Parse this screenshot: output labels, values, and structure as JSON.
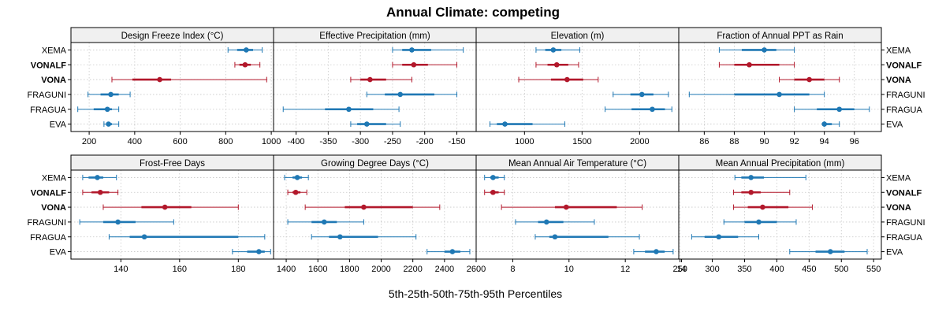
{
  "title": "Annual Climate: competing",
  "xlabel": "5th-25th-50th-75th-95th Percentiles",
  "colors": {
    "highlight": "#b2182b",
    "normal": "#1f78b4",
    "strip_bg": "#f0f0f0",
    "grid": "#c8c8c8"
  },
  "categories": [
    "XEMA",
    "VONALF",
    "VONA",
    "FRAGUNI",
    "FRAGUA",
    "EVA"
  ],
  "highlighted": [
    "VONALF",
    "VONA"
  ],
  "chart_data": [
    {
      "type": "interval",
      "title": "Design Freeze Index (°C)",
      "xlim": [
        120,
        1010
      ],
      "ticks": [
        200,
        400,
        600,
        800,
        1000
      ],
      "data": {
        "XEMA": [
          810,
          850,
          890,
          920,
          960
        ],
        "VONALF": [
          840,
          860,
          885,
          910,
          950
        ],
        "VONA": [
          300,
          390,
          510,
          560,
          980
        ],
        "FRAGUNI": [
          195,
          250,
          295,
          330,
          380
        ],
        "FRAGUA": [
          150,
          220,
          280,
          300,
          330
        ],
        "EVA": [
          265,
          275,
          285,
          300,
          330
        ]
      }
    },
    {
      "type": "interval",
      "title": "Effective Precipitation (mm)",
      "xlim": [
        -435,
        -120
      ],
      "ticks": [
        -400,
        -350,
        -300,
        -250,
        -200,
        -150
      ],
      "data": {
        "XEMA": [
          -250,
          -235,
          -220,
          -190,
          -140
        ],
        "VONALF": [
          -250,
          -235,
          -217,
          -195,
          -150
        ],
        "VONA": [
          -315,
          -300,
          -285,
          -260,
          -220
        ],
        "FRAGUNI": [
          -290,
          -262,
          -238,
          -185,
          -150
        ],
        "FRAGUA": [
          -420,
          -355,
          -318,
          -280,
          -240
        ],
        "EVA": [
          -315,
          -305,
          -290,
          -260,
          -238
        ]
      }
    },
    {
      "type": "interval",
      "title": "Elevation (m)",
      "xlim": [
        580,
        2340
      ],
      "ticks": [
        1000,
        1500,
        2000
      ],
      "data": {
        "XEMA": [
          1100,
          1180,
          1250,
          1320,
          1480
        ],
        "VONALF": [
          1100,
          1200,
          1280,
          1380,
          1470
        ],
        "VONA": [
          950,
          1230,
          1370,
          1510,
          1640
        ],
        "FRAGUNI": [
          1770,
          1920,
          2020,
          2120,
          2250
        ],
        "FRAGUA": [
          1700,
          1930,
          2110,
          2220,
          2280
        ],
        "EVA": [
          700,
          760,
          830,
          1070,
          1350
        ]
      }
    },
    {
      "type": "interval",
      "title": "Fraction of Annual PPT as Rain",
      "xlim": [
        84.3,
        97.8
      ],
      "ticks": [
        86,
        88,
        90,
        92,
        94,
        96
      ],
      "data": {
        "XEMA": [
          87,
          88.5,
          90,
          90.8,
          92
        ],
        "VONALF": [
          87,
          88,
          89,
          91,
          92
        ],
        "VONA": [
          91,
          92,
          93,
          94,
          95
        ],
        "FRAGUNI": [
          85,
          88,
          91,
          93,
          94
        ],
        "FRAGUA": [
          92,
          93.5,
          95,
          96,
          97
        ],
        "EVA": [
          94,
          94,
          94,
          94.5,
          95
        ]
      }
    },
    {
      "type": "interval",
      "title": "Frost-Free Days",
      "xlim": [
        123,
        192
      ],
      "ticks": [
        140,
        160,
        180
      ],
      "data": {
        "XEMA": [
          127,
          129,
          132,
          134,
          138.5
        ],
        "VONALF": [
          127,
          130,
          133,
          136,
          139
        ],
        "VONA": [
          134,
          147,
          155,
          164,
          180
        ],
        "FRAGUNI": [
          126,
          134,
          139,
          145,
          158
        ],
        "FRAGUA": [
          136,
          143,
          148,
          180,
          189
        ],
        "EVA": [
          178,
          183,
          187,
          189,
          191
        ]
      }
    },
    {
      "type": "interval",
      "title": "Growing Degree Days (°C)",
      "xlim": [
        1320,
        2600
      ],
      "ticks": [
        1400,
        1600,
        1800,
        2000,
        2200,
        2400,
        2600
      ],
      "data": {
        "XEMA": [
          1390,
          1440,
          1470,
          1500,
          1540
        ],
        "VONALF": [
          1410,
          1440,
          1460,
          1490,
          1530
        ],
        "VONA": [
          1520,
          1770,
          1890,
          2200,
          2370
        ],
        "FRAGUNI": [
          1410,
          1560,
          1640,
          1720,
          1890
        ],
        "FRAGUA": [
          1560,
          1670,
          1740,
          1980,
          2220
        ],
        "EVA": [
          2290,
          2400,
          2450,
          2500,
          2560
        ]
      }
    },
    {
      "type": "interval",
      "title": "Mean Annual Air Temperature (°C)",
      "xlim": [
        6.7,
        13.9
      ],
      "ticks": [
        8,
        10,
        12,
        14
      ],
      "data": {
        "XEMA": [
          7.0,
          7.2,
          7.3,
          7.5,
          7.7
        ],
        "VONALF": [
          7.0,
          7.2,
          7.3,
          7.5,
          7.7
        ],
        "VONA": [
          7.6,
          9.5,
          9.9,
          11.7,
          12.6
        ],
        "FRAGUNI": [
          8.1,
          8.9,
          9.2,
          9.8,
          10.9
        ],
        "FRAGUA": [
          8.8,
          9.3,
          9.5,
          11.4,
          12.5
        ],
        "EVA": [
          12.3,
          12.7,
          13.1,
          13.4,
          13.7
        ]
      }
    },
    {
      "type": "interval",
      "title": "Mean Annual Precipitation (mm)",
      "xlim": [
        248,
        562
      ],
      "ticks": [
        250,
        300,
        350,
        400,
        450,
        500,
        550
      ],
      "data": {
        "XEMA": [
          335,
          345,
          360,
          380,
          445
        ],
        "VONALF": [
          333,
          345,
          360,
          375,
          420
        ],
        "VONA": [
          333,
          355,
          378,
          418,
          455
        ],
        "FRAGUNI": [
          318,
          350,
          372,
          400,
          430
        ],
        "FRAGUA": [
          268,
          288,
          310,
          340,
          372
        ],
        "EVA": [
          420,
          460,
          483,
          505,
          540
        ]
      }
    }
  ]
}
